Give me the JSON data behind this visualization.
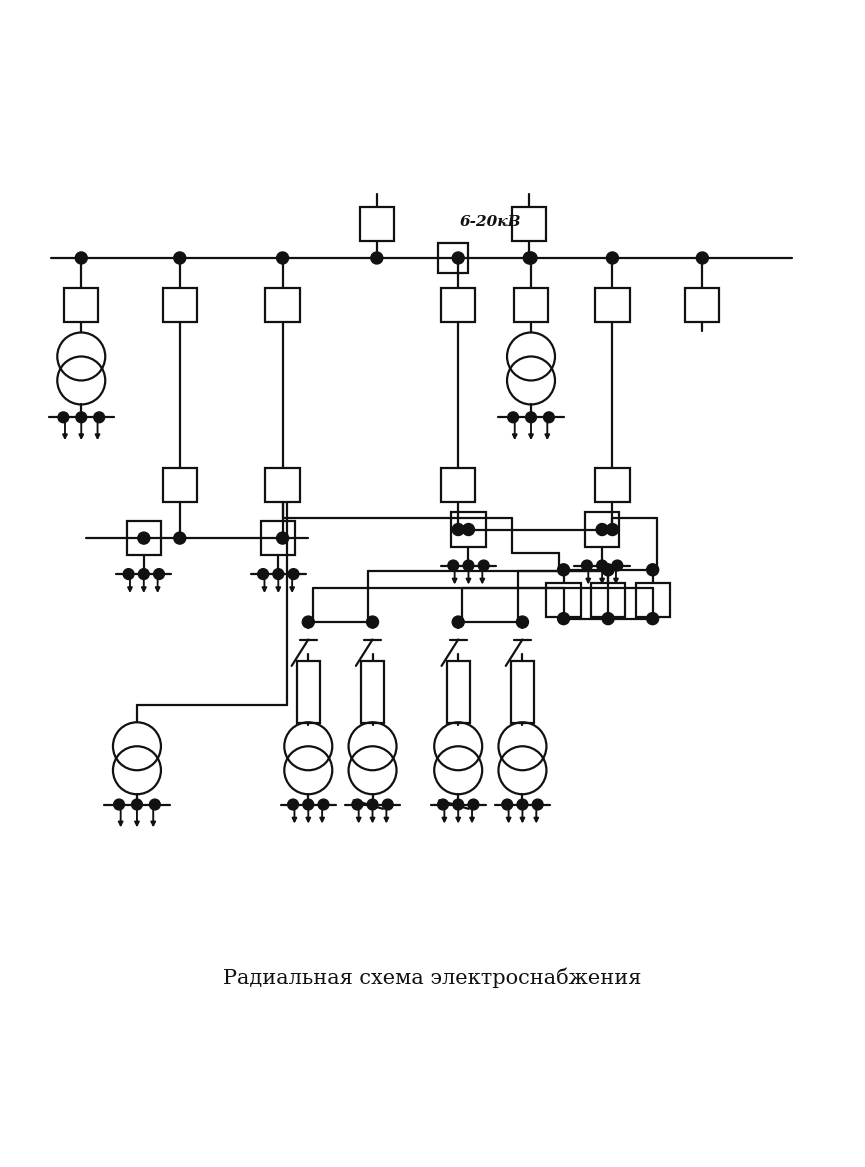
{
  "title": "Радиальная схема электроснабжения",
  "label_voltage": "6-20кВ",
  "bg": "#ffffff",
  "lc": "#111111",
  "lw": 1.6,
  "bh": 0.02,
  "cr": 0.028,
  "dr": 0.007
}
